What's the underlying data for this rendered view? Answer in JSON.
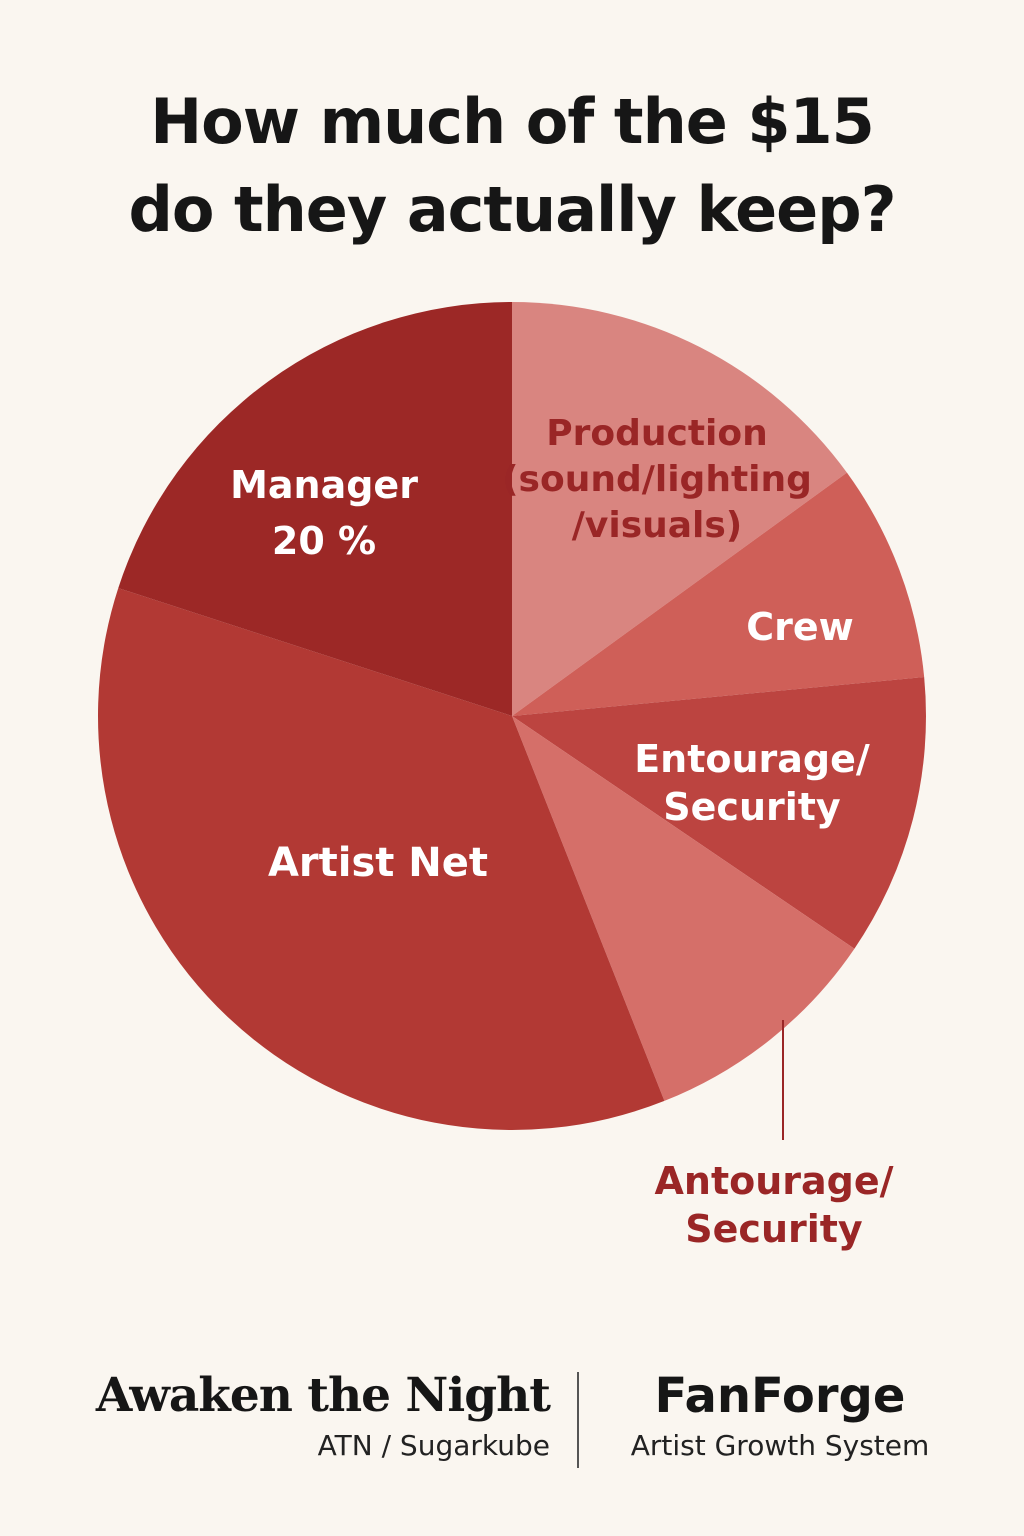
{
  "chart_data": {
    "type": "pie",
    "title": [
      "How much of the $15",
      "do they actually keep?"
    ],
    "slices": [
      {
        "label": [
          "Production",
          "(sound/lighting",
          "/visuals)"
        ],
        "value": 15,
        "color": "#d98580",
        "label_color": "#9a2626"
      },
      {
        "label": [
          "Crew"
        ],
        "value": 8.5,
        "color": "#cf5f58",
        "label_color": "#ffffff"
      },
      {
        "label": [
          "Entourage/",
          "Security"
        ],
        "value": 11,
        "color": "#bc4440",
        "label_color": "#ffffff"
      },
      {
        "label": [],
        "value": 9.5,
        "color": "#d56f69",
        "label_color": "#ffffff"
      },
      {
        "label": [
          "Artist Net"
        ],
        "value": 36,
        "color": "#b23934",
        "label_color": "#ffffff"
      },
      {
        "label": [
          "Manager",
          "20 %"
        ],
        "value": 20,
        "color": "#9c2826",
        "label_color": "#ffffff"
      }
    ],
    "callout": {
      "label": [
        "Antourage/",
        "Security"
      ],
      "color": "#9a2626"
    }
  },
  "footer": {
    "left_brand": "Awaken the Night",
    "left_sub": "ATN / Sugarkube",
    "right_brand": "FanForge",
    "right_sub": "Artist Growth System"
  }
}
